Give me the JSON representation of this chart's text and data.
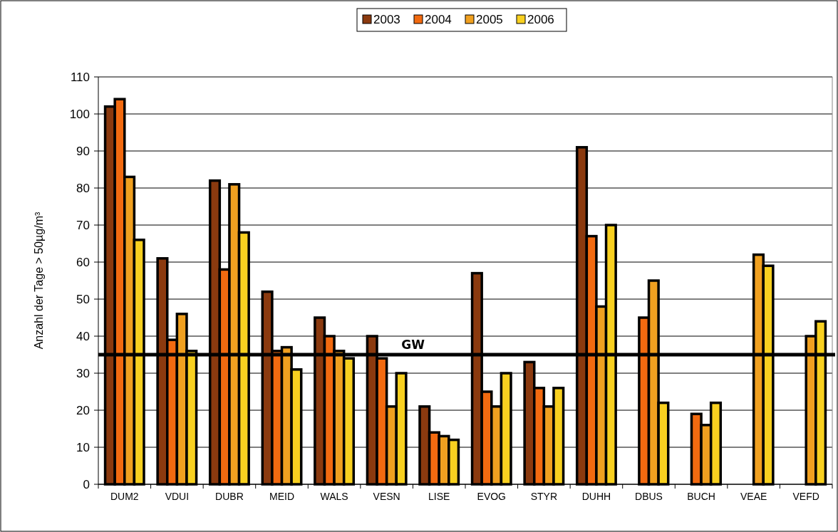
{
  "chart_data": {
    "type": "bar",
    "ylabel": "Anzahl der Tage > 50µg/m³",
    "categories": [
      "DUM2",
      "VDUI",
      "DUBR",
      "MEID",
      "WALS",
      "VESN",
      "LISE",
      "EVOG",
      "STYR",
      "DUHH",
      "DBUS",
      "BUCH",
      "VEAE",
      "VEFD"
    ],
    "series": [
      {
        "name": "2003",
        "color": "#8b3a0f",
        "values": [
          102,
          61,
          82,
          52,
          45,
          40,
          21,
          57,
          33,
          91,
          null,
          null,
          null,
          null
        ]
      },
      {
        "name": "2004",
        "color": "#f26a10",
        "values": [
          104,
          39,
          58,
          36,
          40,
          34,
          14,
          25,
          26,
          67,
          45,
          19,
          null,
          null
        ]
      },
      {
        "name": "2005",
        "color": "#f0a020",
        "values": [
          83,
          46,
          81,
          37,
          36,
          21,
          13,
          21,
          21,
          48,
          55,
          16,
          62,
          40
        ]
      },
      {
        "name": "2006",
        "color": "#f8d020",
        "values": [
          66,
          36,
          68,
          31,
          34,
          30,
          12,
          30,
          26,
          70,
          22,
          22,
          59,
          44
        ]
      }
    ],
    "ylim": [
      0,
      110
    ],
    "yticks": [
      0,
      10,
      20,
      30,
      40,
      50,
      60,
      70,
      80,
      90,
      100,
      110
    ],
    "grid": "y",
    "legend": "top",
    "ref_lines": [
      {
        "axis": "y",
        "value": 35,
        "label": "GW",
        "color": "#000000"
      }
    ]
  }
}
